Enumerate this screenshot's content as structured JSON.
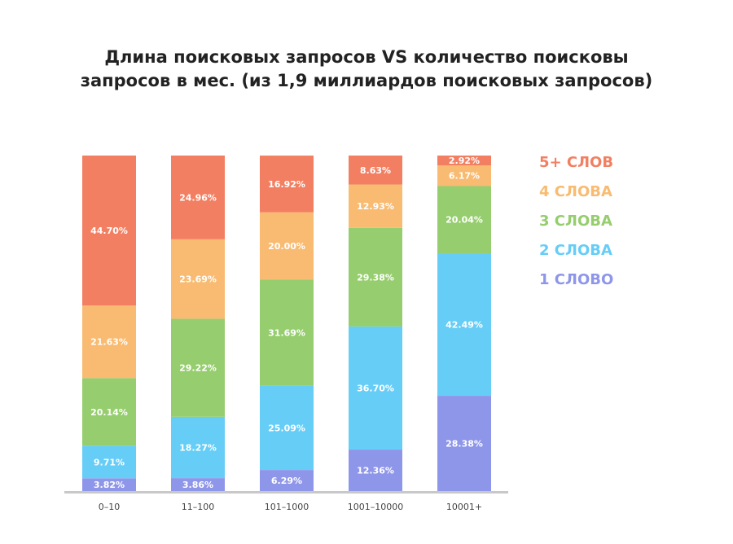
{
  "chart_data": {
    "type": "bar",
    "stacked": true,
    "title_lines": [
      "Длина поисковых запросов VS количество поисковы",
      "запросов в мес. (из 1,9  миллиардов поисковых запросов)"
    ],
    "categories": [
      "0–10",
      "11–100",
      "101–1000",
      "1001–10000",
      "10001+"
    ],
    "series": [
      {
        "name": "1 СЛОВО",
        "color": "#8e96ea",
        "values": [
          3.82,
          3.86,
          6.29,
          12.36,
          28.38
        ],
        "labels": [
          "3.82%",
          "3.86%",
          "6.29%",
          "12.36%",
          "28.38%"
        ]
      },
      {
        "name": "2 СЛОВА",
        "color": "#66cdf7",
        "values": [
          9.71,
          18.27,
          25.09,
          36.7,
          42.49
        ],
        "labels": [
          "9.71%",
          "18.27%",
          "25.09%",
          "36.70%",
          "42.49%"
        ]
      },
      {
        "name": "3 СЛОВА",
        "color": "#96cd6e",
        "values": [
          20.14,
          29.22,
          31.69,
          29.38,
          20.04
        ],
        "labels": [
          "20.14%",
          "29.22%",
          "31.69%",
          "29.38%",
          "20.04%"
        ]
      },
      {
        "name": "4 СЛОВА",
        "color": "#f8bb71",
        "values": [
          21.63,
          23.69,
          20.0,
          12.93,
          6.17
        ],
        "labels": [
          "21.63%",
          "23.69%",
          "20.00%",
          "12.93%",
          "6.17%"
        ]
      },
      {
        "name": "5+ СЛОВ",
        "color": "#f37f62",
        "values": [
          44.7,
          24.96,
          16.92,
          8.63,
          2.92
        ],
        "labels": [
          "44.70%",
          "24.96%",
          "16.92%",
          "8.63%",
          "2.92%"
        ]
      }
    ],
    "legend_order": [
      4,
      3,
      2,
      1,
      0
    ],
    "legend_position": "right",
    "ylim": [
      0,
      100
    ],
    "grid": false,
    "axis_color": "#c8c8c8"
  }
}
